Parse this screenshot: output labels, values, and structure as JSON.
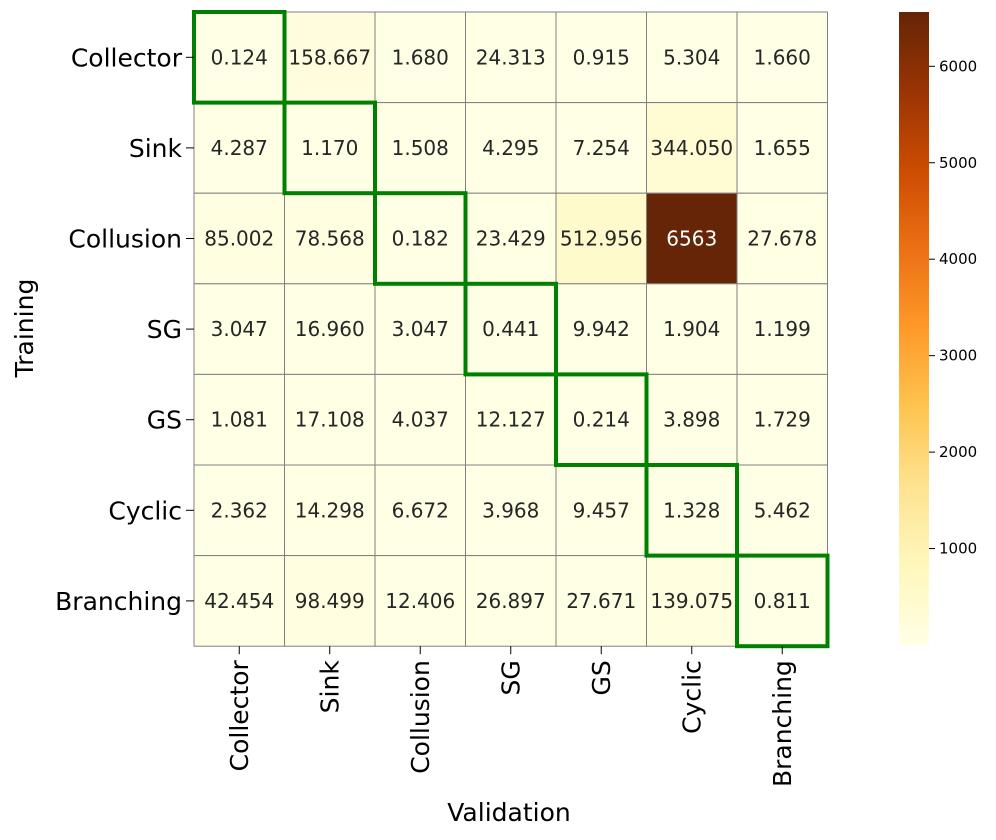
{
  "chart_data": {
    "type": "heatmap",
    "xlabel": "Validation",
    "ylabel": "Training",
    "row_labels": [
      "Collector",
      "Sink",
      "Collusion",
      "SG",
      "GS",
      "Cyclic",
      "Branching"
    ],
    "col_labels": [
      "Collector",
      "Sink",
      "Collusion",
      "SG",
      "GS",
      "Cyclic",
      "Branching"
    ],
    "values": [
      [
        0.124,
        158.667,
        1.68,
        24.313,
        0.915,
        5.304,
        1.66
      ],
      [
        4.287,
        1.17,
        1.508,
        4.295,
        7.254,
        344.05,
        1.655
      ],
      [
        85.002,
        78.568,
        0.182,
        23.429,
        512.956,
        6563,
        27.678
      ],
      [
        3.047,
        16.96,
        3.047,
        0.441,
        9.942,
        1.904,
        1.199
      ],
      [
        1.081,
        17.108,
        4.037,
        12.127,
        0.214,
        3.898,
        1.729
      ],
      [
        2.362,
        14.298,
        6.672,
        3.968,
        9.457,
        1.328,
        5.462
      ],
      [
        42.454,
        98.499,
        12.406,
        26.897,
        27.671,
        139.075,
        0.811
      ]
    ],
    "cell_text": [
      [
        "0.124",
        "158.667",
        "1.680",
        "24.313",
        "0.915",
        "5.304",
        "1.660"
      ],
      [
        "4.287",
        "1.170",
        "1.508",
        "4.295",
        "7.254",
        "344.050",
        "1.655"
      ],
      [
        "85.002",
        "78.568",
        "0.182",
        "23.429",
        "512.956",
        "6563",
        "27.678"
      ],
      [
        "3.047",
        "16.960",
        "3.047",
        "0.441",
        "9.942",
        "1.904",
        "1.199"
      ],
      [
        "1.081",
        "17.108",
        "4.037",
        "12.127",
        "0.214",
        "3.898",
        "1.729"
      ],
      [
        "2.362",
        "14.298",
        "6.672",
        "3.968",
        "9.457",
        "1.328",
        "5.462"
      ],
      [
        "42.454",
        "98.499",
        "12.406",
        "26.897",
        "27.671",
        "139.075",
        "0.811"
      ]
    ],
    "colorbar": {
      "range": [
        0,
        6563
      ],
      "ticks": [
        1000,
        2000,
        3000,
        4000,
        5000,
        6000
      ],
      "tick_labels": [
        "1000",
        "2000",
        "3000",
        "4000",
        "5000",
        "6000"
      ],
      "colormap": "YlOrBr",
      "stops": [
        "#ffffe5",
        "#fff7bc",
        "#fee391",
        "#fec44f",
        "#fe9929",
        "#ec7014",
        "#cc4c02",
        "#993404",
        "#662506"
      ]
    },
    "highlight": "diagonal",
    "highlight_color": "#008000",
    "grid_color": "#808080"
  }
}
